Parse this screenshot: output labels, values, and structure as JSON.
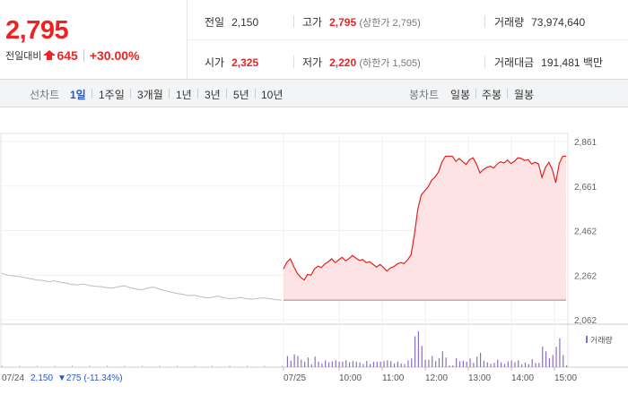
{
  "quote": {
    "price": "2,795",
    "change_label": "전일대비",
    "change_amount": "645",
    "change_pct": "+30.00%",
    "prev_close_label": "전일",
    "prev_close": "2,150",
    "open_label": "시가",
    "open": "2,325",
    "high_label": "고가",
    "high": "2,795",
    "upper_limit": "(상한가 2,795)",
    "low_label": "저가",
    "low": "2,220",
    "lower_limit": "(하한가 1,505)",
    "volume_label": "거래량",
    "volume": "73,974,640",
    "value_label": "거래대금",
    "value": "191,481",
    "value_unit": "백만",
    "up_color": "#e22222",
    "down_color": "#2a56c6"
  },
  "periods": {
    "label": "선차트",
    "items": [
      "1일",
      "1주일",
      "3개월",
      "1년",
      "3년",
      "5년",
      "10년"
    ],
    "active": "1일",
    "candle_label": "봉차트",
    "candle_items": [
      "일봉",
      "주봉",
      "월봉"
    ]
  },
  "chart_data": {
    "type": "line",
    "y_ticks": [
      "2,861",
      "2,661",
      "2,462",
      "2,262",
      "2,062"
    ],
    "x_ticks": [
      "07/25",
      "10:00",
      "11:00",
      "12:00",
      "13:00",
      "14:00",
      "15:00"
    ],
    "ylim": [
      2062,
      2861
    ],
    "baseline": 2150,
    "volume_legend": "거래량",
    "prev_day": {
      "date": "07/24",
      "close": "2,150",
      "change": "▼275 (-11.34%)"
    },
    "prev_series": [
      2270,
      2262,
      2258,
      2255,
      2250,
      2245,
      2240,
      2238,
      2232,
      2236,
      2230,
      2226,
      2220,
      2218,
      2222,
      2215,
      2212,
      2210,
      2206,
      2204,
      2210,
      2214,
      2206,
      2200,
      2196,
      2204,
      2208,
      2200,
      2192,
      2186,
      2180,
      2176,
      2170,
      2172,
      2166,
      2160,
      2162,
      2168,
      2162,
      2156,
      2158,
      2162,
      2156,
      2154,
      2158,
      2160,
      2156,
      2152,
      2150
    ],
    "today_series": [
      2290,
      2320,
      2335,
      2300,
      2270,
      2252,
      2240,
      2265,
      2262,
      2290,
      2302,
      2296,
      2312,
      2322,
      2335,
      2318,
      2330,
      2342,
      2326,
      2336,
      2350,
      2338,
      2328,
      2332,
      2318,
      2322,
      2310,
      2298,
      2310,
      2296,
      2280,
      2294,
      2300,
      2312,
      2318,
      2314,
      2330,
      2352,
      2445,
      2560,
      2622,
      2640,
      2658,
      2688,
      2702,
      2725,
      2770,
      2795,
      2795,
      2795,
      2772,
      2785,
      2770,
      2758,
      2780,
      2788,
      2760,
      2720,
      2735,
      2745,
      2750,
      2742,
      2760,
      2770,
      2765,
      2778,
      2762,
      2772,
      2788,
      2785,
      2776,
      2780,
      2760,
      2768,
      2760,
      2700,
      2745,
      2768,
      2735,
      2676,
      2762,
      2795,
      2795
    ]
  }
}
